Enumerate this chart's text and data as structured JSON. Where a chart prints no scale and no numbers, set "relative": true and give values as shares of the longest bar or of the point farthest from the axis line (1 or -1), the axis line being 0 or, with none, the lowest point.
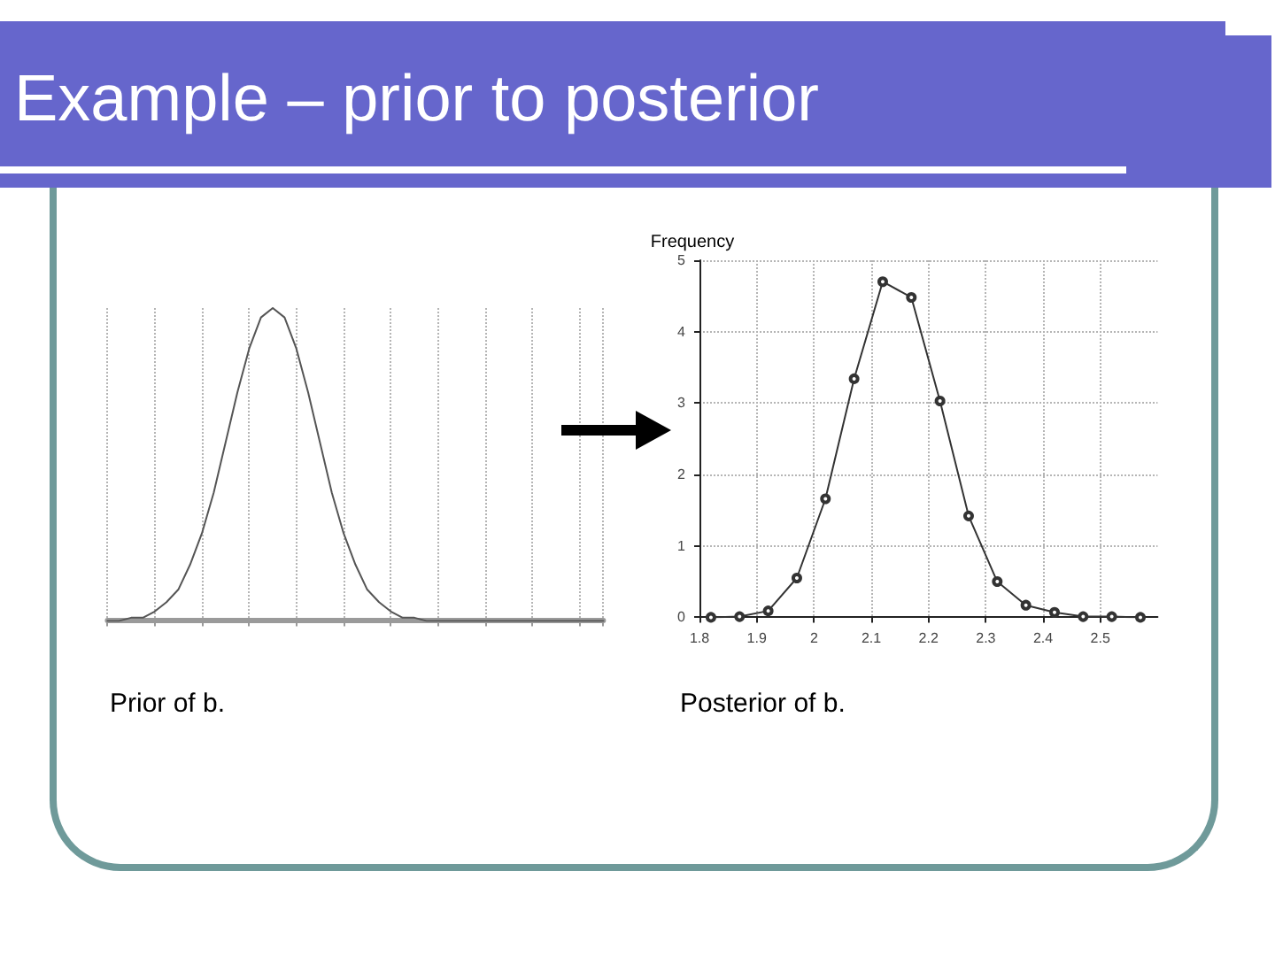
{
  "chart_data": [
    {
      "type": "line",
      "title": "Example – prior to posterior",
      "relative": true,
      "categories": [
        null,
        null,
        null,
        null,
        null,
        null,
        null,
        null,
        null,
        null,
        null,
        null,
        null,
        null,
        null,
        null,
        null,
        null,
        null,
        null,
        null,
        null,
        null,
        null,
        null,
        null,
        null,
        null,
        null,
        null,
        null,
        null,
        null,
        null,
        null,
        null,
        null,
        null,
        null,
        null,
        null,
        null,
        null
      ],
      "values": [
        0,
        0,
        0.01,
        0.01,
        0.03,
        0.06,
        0.1,
        0.18,
        0.28,
        0.41,
        0.57,
        0.73,
        0.87,
        0.97,
        1,
        0.97,
        0.87,
        0.73,
        0.57,
        0.41,
        0.28,
        0.18,
        0.1,
        0.06,
        0.03,
        0.01,
        0.01,
        0,
        0,
        0,
        0,
        0,
        0,
        0,
        0,
        0,
        0,
        0,
        0,
        0,
        0,
        0,
        0
      ],
      "color": "#555555",
      "grid": "x",
      "annotations": [
        "Prior of b."
      ]
    },
    {
      "type": "line",
      "ylabel": "Frequency",
      "x": [
        1.82,
        1.87,
        1.92,
        1.97,
        2.02,
        2.07,
        2.12,
        2.17,
        2.22,
        2.27,
        2.32,
        2.37,
        2.42,
        2.47,
        2.52,
        2.57
      ],
      "values": [
        0,
        0.01,
        0.09,
        0.55,
        1.66,
        3.34,
        4.7,
        4.48,
        3.03,
        1.42,
        0.5,
        0.17,
        0.07,
        0.01,
        0.01,
        0
      ],
      "color": "#333333",
      "xlim": [
        1.8,
        2.6
      ],
      "xticks": [
        1.8,
        1.9,
        2,
        2.1,
        2.2,
        2.3,
        2.4,
        2.5
      ],
      "ylim": [
        0,
        5
      ],
      "yticks": [
        0,
        1,
        2,
        3,
        4,
        5
      ],
      "grid": true,
      "marker": "circle",
      "annotations": [
        "Posterior of b."
      ]
    }
  ]
}
